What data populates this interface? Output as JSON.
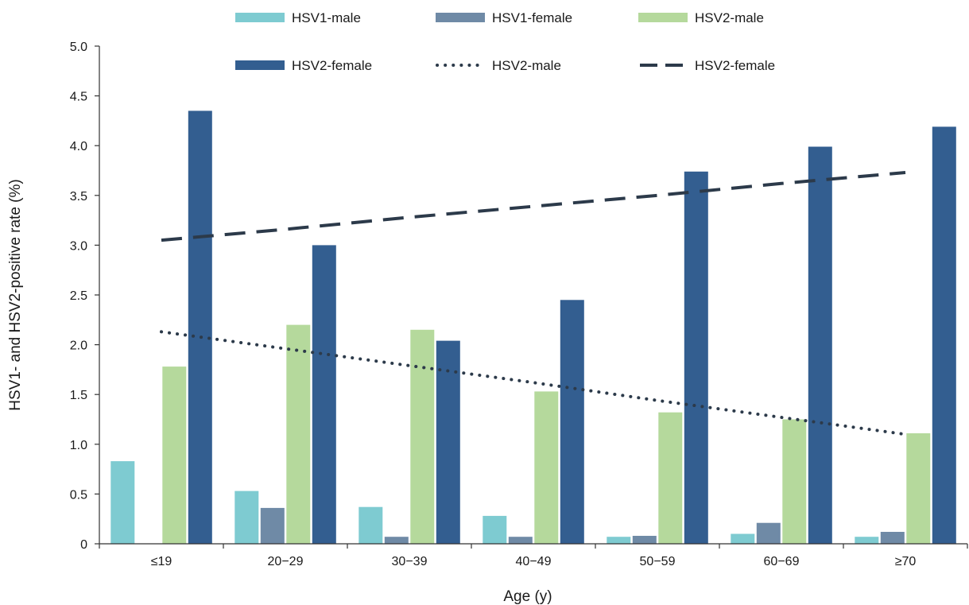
{
  "chart_data": {
    "type": "bar",
    "xlabel": "Age (y)",
    "ylabel": "HSV1- and HSV2-positive rate (%)",
    "ylim": [
      0,
      5.0
    ],
    "yticks": [
      "0",
      "0.5",
      "1.0",
      "1.5",
      "2.0",
      "2.5",
      "3.0",
      "3.5",
      "4.0",
      "4.5",
      "5.0"
    ],
    "categories": [
      "≤19",
      "20−29",
      "30−39",
      "40−49",
      "50−59",
      "60−69",
      "≥70"
    ],
    "series": [
      {
        "name": "HSV1-male",
        "kind": "bar",
        "color": "#7ecbd1",
        "values": [
          0.83,
          0.53,
          0.37,
          0.28,
          0.07,
          0.1,
          0.07
        ]
      },
      {
        "name": "HSV1-female",
        "kind": "bar",
        "color": "#6f8aa6",
        "values": [
          0.0,
          0.36,
          0.07,
          0.07,
          0.08,
          0.21,
          0.12
        ]
      },
      {
        "name": "HSV2-male",
        "kind": "bar",
        "color": "#b5d99c",
        "values": [
          1.78,
          2.2,
          2.15,
          1.53,
          1.32,
          1.25,
          1.11
        ]
      },
      {
        "name": "HSV2-female",
        "kind": "bar",
        "color": "#335e90",
        "values": [
          4.35,
          3.0,
          2.04,
          2.45,
          3.74,
          3.99,
          4.19
        ]
      },
      {
        "name": "HSV2-male",
        "kind": "trend-dotted",
        "color": "#2c3a4a",
        "values": [
          2.13,
          1.96,
          1.79,
          1.62,
          1.44,
          1.27,
          1.1
        ]
      },
      {
        "name": "HSV2-female",
        "kind": "trend-dashed",
        "color": "#2c3a4a",
        "values": [
          3.05,
          3.16,
          3.28,
          3.39,
          3.5,
          3.62,
          3.73
        ]
      }
    ],
    "legend_position": "top",
    "grid": false
  }
}
